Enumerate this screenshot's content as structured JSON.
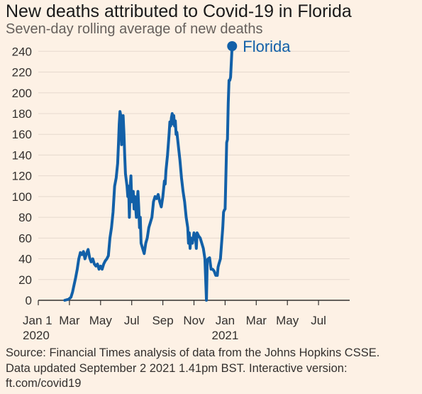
{
  "title": "New deaths attributed to Covid-19 in Florida",
  "subtitle": "Seven-day rolling average of new deaths",
  "source": "Source: Financial Times analysis of data from the Johns Hopkins CSSE.\nData updated September 2 2021 1.41pm BST. Interactive version:\nft.com/covid19",
  "colors": {
    "line": "#1260a8",
    "grid": "#e6d9ce",
    "axis": "#33302e",
    "background": "#fdf1e5"
  },
  "chart_data": {
    "type": "line",
    "ylim": [
      0,
      245
    ],
    "yticks": [
      0,
      20,
      40,
      60,
      80,
      100,
      120,
      140,
      160,
      180,
      200,
      220,
      240
    ],
    "grid": true,
    "xticks": [
      {
        "month": 0,
        "label": "Jan 1",
        "sub": "2020"
      },
      {
        "month": 2,
        "label": "Mar",
        "sub": ""
      },
      {
        "month": 4,
        "label": "May",
        "sub": ""
      },
      {
        "month": 6,
        "label": "Jul",
        "sub": ""
      },
      {
        "month": 8,
        "label": "Sep",
        "sub": ""
      },
      {
        "month": 10,
        "label": "Nov",
        "sub": ""
      },
      {
        "month": 12,
        "label": "Jan",
        "sub": "2021"
      },
      {
        "month": 14,
        "label": "Mar",
        "sub": ""
      },
      {
        "month": 16,
        "label": "May",
        "sub": ""
      },
      {
        "month": 18,
        "label": "Jul",
        "sub": ""
      }
    ],
    "series": [
      {
        "name": "Florida",
        "x_unit": "months since Jan 1 2020",
        "points": [
          [
            1.7,
            0
          ],
          [
            1.95,
            1
          ],
          [
            2.1,
            3
          ],
          [
            2.2,
            8
          ],
          [
            2.3,
            15
          ],
          [
            2.4,
            22
          ],
          [
            2.5,
            30
          ],
          [
            2.6,
            40
          ],
          [
            2.7,
            46
          ],
          [
            2.8,
            44
          ],
          [
            2.9,
            47
          ],
          [
            3.0,
            40
          ],
          [
            3.1,
            45
          ],
          [
            3.2,
            49
          ],
          [
            3.3,
            41
          ],
          [
            3.4,
            37
          ],
          [
            3.5,
            40
          ],
          [
            3.6,
            35
          ],
          [
            3.7,
            33
          ],
          [
            3.8,
            35
          ],
          [
            3.9,
            30
          ],
          [
            4.0,
            33
          ],
          [
            4.1,
            30
          ],
          [
            4.2,
            35
          ],
          [
            4.3,
            38
          ],
          [
            4.4,
            40
          ],
          [
            4.5,
            43
          ],
          [
            4.6,
            60
          ],
          [
            4.7,
            70
          ],
          [
            4.8,
            85
          ],
          [
            4.9,
            110
          ],
          [
            5.0,
            118
          ],
          [
            5.1,
            132
          ],
          [
            5.15,
            150
          ],
          [
            5.2,
            170
          ],
          [
            5.25,
            182
          ],
          [
            5.3,
            178
          ],
          [
            5.35,
            150
          ],
          [
            5.4,
            168
          ],
          [
            5.45,
            178
          ],
          [
            5.5,
            162
          ],
          [
            5.55,
            140
          ],
          [
            5.6,
            122
          ],
          [
            5.7,
            110
          ],
          [
            5.75,
            100
          ],
          [
            5.8,
            110
          ],
          [
            5.85,
            80
          ],
          [
            5.9,
            108
          ],
          [
            5.95,
            120
          ],
          [
            6.0,
            95
          ],
          [
            6.1,
            105
          ],
          [
            6.15,
            88
          ],
          [
            6.2,
            100
          ],
          [
            6.25,
            90
          ],
          [
            6.3,
            80
          ],
          [
            6.35,
            95
          ],
          [
            6.4,
            105
          ],
          [
            6.45,
            90
          ],
          [
            6.5,
            70
          ],
          [
            6.55,
            80
          ],
          [
            6.6,
            55
          ],
          [
            6.7,
            50
          ],
          [
            6.8,
            45
          ],
          [
            6.9,
            55
          ],
          [
            7.0,
            60
          ],
          [
            7.1,
            70
          ],
          [
            7.2,
            75
          ],
          [
            7.3,
            80
          ],
          [
            7.4,
            95
          ],
          [
            7.5,
            100
          ],
          [
            7.6,
            98
          ],
          [
            7.7,
            102
          ],
          [
            7.8,
            95
          ],
          [
            7.9,
            90
          ],
          [
            8.0,
            100
          ],
          [
            8.1,
            115
          ],
          [
            8.15,
            112
          ],
          [
            8.2,
            125
          ],
          [
            8.3,
            140
          ],
          [
            8.4,
            160
          ],
          [
            8.45,
            172
          ],
          [
            8.5,
            168
          ],
          [
            8.55,
            176
          ],
          [
            8.6,
            180
          ],
          [
            8.65,
            170
          ],
          [
            8.7,
            178
          ],
          [
            8.75,
            168
          ],
          [
            8.8,
            173
          ],
          [
            8.85,
            160
          ],
          [
            8.9,
            162
          ],
          [
            8.95,
            155
          ],
          [
            9.0,
            148
          ],
          [
            9.1,
            135
          ],
          [
            9.2,
            118
          ],
          [
            9.3,
            105
          ],
          [
            9.4,
            95
          ],
          [
            9.5,
            80
          ],
          [
            9.6,
            70
          ],
          [
            9.65,
            55
          ],
          [
            9.7,
            65
          ],
          [
            9.75,
            50
          ],
          [
            9.8,
            60
          ],
          [
            9.9,
            55
          ],
          [
            10.0,
            65
          ],
          [
            10.1,
            60
          ],
          [
            10.15,
            50
          ],
          [
            10.2,
            65
          ],
          [
            10.3,
            62
          ],
          [
            10.4,
            60
          ],
          [
            10.5,
            55
          ],
          [
            10.6,
            50
          ],
          [
            10.7,
            40
          ],
          [
            10.75,
            20
          ],
          [
            10.8,
            0
          ],
          [
            10.85,
            38
          ],
          [
            10.9,
            40
          ],
          [
            11.0,
            41
          ],
          [
            11.1,
            30
          ],
          [
            11.2,
            30
          ],
          [
            11.3,
            28
          ],
          [
            11.4,
            24
          ],
          [
            11.5,
            24
          ],
          [
            11.55,
            32
          ],
          [
            11.6,
            35
          ],
          [
            11.7,
            40
          ],
          [
            11.8,
            60
          ],
          [
            11.85,
            70
          ],
          [
            11.9,
            85
          ],
          [
            11.95,
            87
          ],
          [
            12.0,
            88
          ],
          [
            12.05,
            120
          ],
          [
            12.1,
            152
          ],
          [
            12.15,
            155
          ],
          [
            12.2,
            190
          ],
          [
            12.25,
            212
          ],
          [
            12.3,
            212
          ],
          [
            12.35,
            215
          ],
          [
            12.4,
            230
          ],
          [
            12.45,
            245
          ]
        ]
      }
    ]
  }
}
